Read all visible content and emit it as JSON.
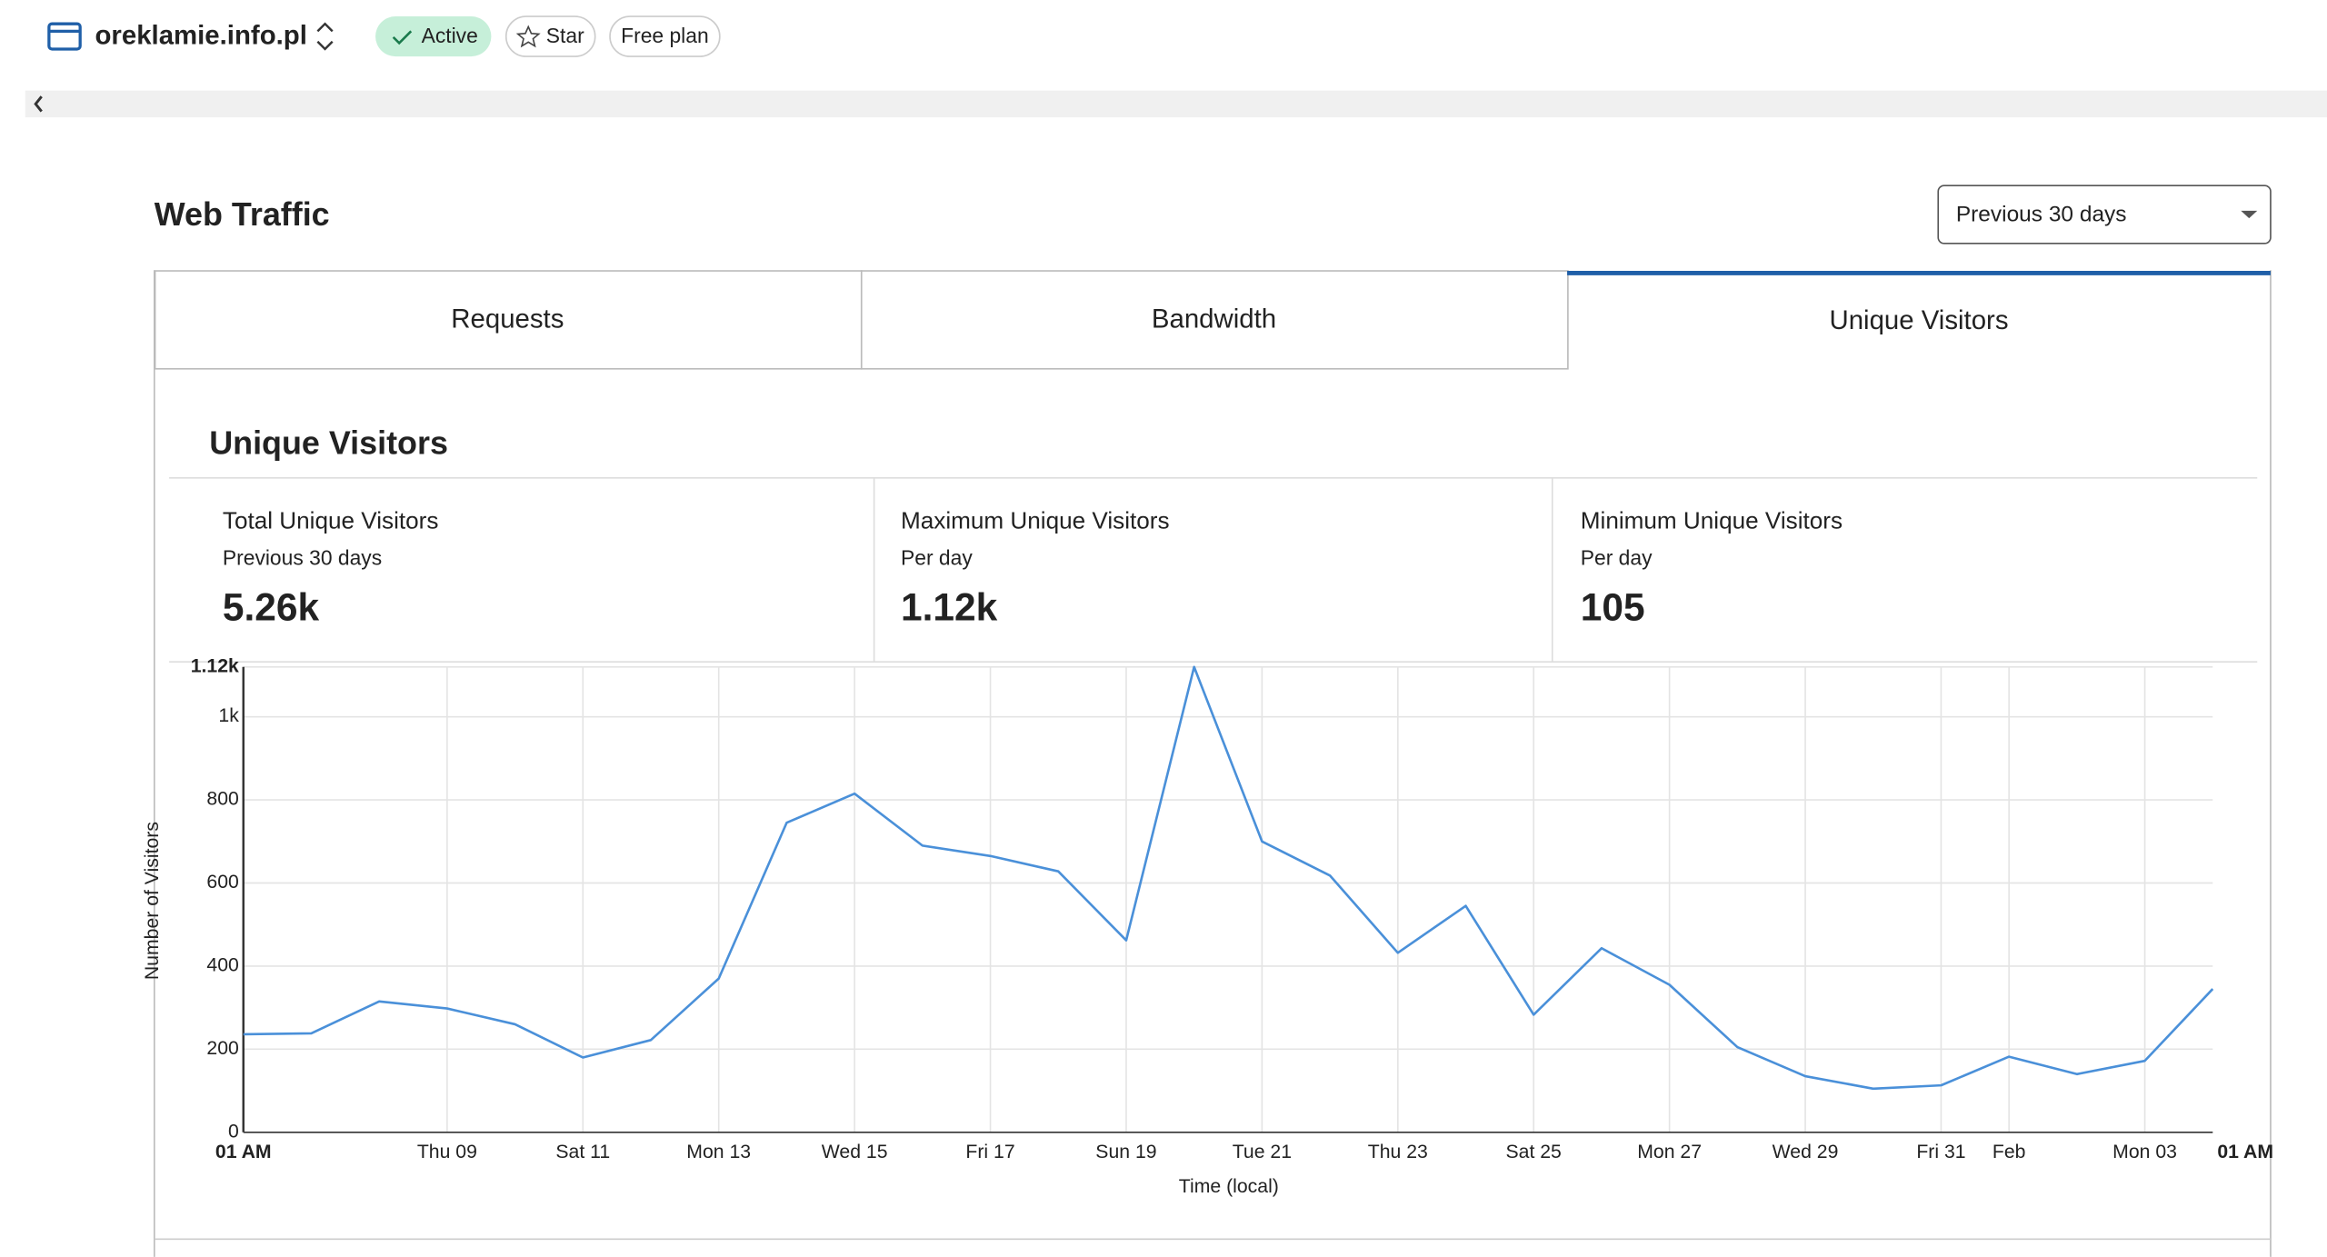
{
  "header": {
    "site": "oreklamie.info.pl",
    "status": "Active",
    "star": "Star",
    "plan": "Free plan"
  },
  "section_title": "Web Traffic",
  "range_select": "Previous 30 days",
  "tabs": [
    "Requests",
    "Bandwidth",
    "Unique Visitors"
  ],
  "card_title": "Unique Visitors",
  "stats": [
    {
      "label": "Total Unique Visitors",
      "sub": "Previous 30 days",
      "value": "5.26k"
    },
    {
      "label": "Maximum Unique Visitors",
      "sub": "Per day",
      "value": "1.12k"
    },
    {
      "label": "Minimum Unique Visitors",
      "sub": "Per day",
      "value": "105"
    }
  ],
  "chart_data": {
    "type": "line",
    "x_label": "Time (local)",
    "y_label": "Number of Visitors",
    "categories": [
      "01 AM",
      null,
      null,
      "Thu 09",
      null,
      "Sat 11",
      null,
      "Mon 13",
      null,
      "Wed 15",
      null,
      "Fri 17",
      null,
      "Sun 19",
      null,
      "Tue 21",
      null,
      "Thu 23",
      null,
      "Sat 25",
      null,
      "Mon 27",
      null,
      "Wed 29",
      null,
      "Fri 31",
      "Feb",
      null,
      "Mon 03",
      "01 AM"
    ],
    "series": [
      {
        "name": "Unique Visitors",
        "color": "#4a90d9",
        "values": [
          236,
          238,
          315,
          298,
          260,
          180,
          222,
          370,
          745,
          815,
          690,
          665,
          628,
          462,
          1120,
          700,
          618,
          432,
          545,
          283,
          443,
          355,
          205,
          135,
          105,
          113,
          182,
          140,
          172,
          345
        ]
      }
    ],
    "ylim": [
      0,
      1120
    ],
    "yticks": [
      0,
      200,
      400,
      600,
      800,
      {
        "value": 1000,
        "label": "1k"
      },
      {
        "value": 1120,
        "label": "1.12k"
      }
    ],
    "grid": true
  }
}
